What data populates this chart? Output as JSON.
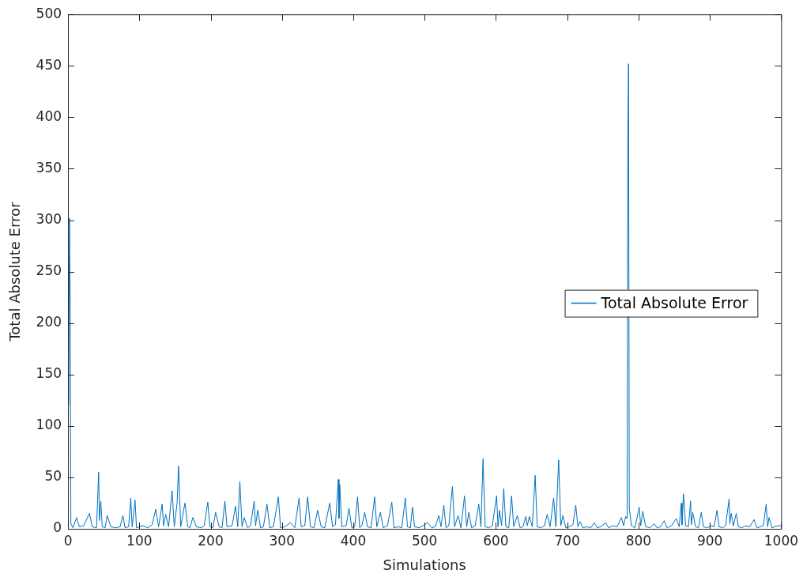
{
  "chart_data": {
    "type": "line",
    "xlabel": "Simulations",
    "ylabel": "Total Absolute Error",
    "x": [
      1,
      2,
      3,
      4,
      7,
      12,
      16,
      22,
      30,
      34,
      40,
      43,
      44,
      46,
      48,
      52,
      55,
      60,
      67,
      73,
      77,
      80,
      85,
      88,
      90,
      94,
      96,
      105,
      112,
      118,
      123,
      127,
      132,
      134,
      137,
      141,
      146,
      149,
      153,
      155,
      158,
      164,
      168,
      171,
      175,
      180,
      187,
      191,
      196,
      199,
      203,
      207,
      212,
      216,
      220,
      223,
      230,
      235,
      238,
      241,
      244,
      247,
      252,
      256,
      261,
      263,
      266,
      270,
      274,
      279,
      283,
      288,
      295,
      298,
      304,
      312,
      318,
      324,
      327,
      332,
      336,
      340,
      345,
      350,
      355,
      360,
      367,
      371,
      375,
      379,
      380,
      381,
      384,
      390,
      394,
      398,
      402,
      406,
      409,
      412,
      416,
      420,
      425,
      430,
      433,
      438,
      442,
      448,
      454,
      457,
      463,
      468,
      473,
      476,
      480,
      483,
      486,
      492,
      498,
      504,
      510,
      515,
      520,
      523,
      527,
      530,
      534,
      539,
      542,
      547,
      551,
      556,
      559,
      562,
      566,
      571,
      576,
      579,
      582,
      585,
      590,
      595,
      601,
      603,
      605,
      608,
      611,
      614,
      618,
      622,
      625,
      630,
      634,
      638,
      642,
      644,
      647,
      651,
      655,
      658,
      663,
      668,
      672,
      676,
      681,
      684,
      688,
      691,
      694,
      698,
      703,
      708,
      712,
      715,
      718,
      722,
      728,
      733,
      738,
      742,
      747,
      754,
      758,
      764,
      770,
      776,
      779,
      782,
      784,
      785,
      786,
      787,
      790,
      795,
      801,
      803,
      806,
      810,
      816,
      822,
      826,
      831,
      836,
      840,
      846,
      853,
      857,
      860,
      861,
      863,
      866,
      870,
      873,
      874,
      876,
      880,
      884,
      888,
      891,
      896,
      902,
      906,
      910,
      913,
      918,
      922,
      927,
      928,
      930,
      933,
      937,
      940,
      945,
      950,
      956,
      962,
      966,
      971,
      975,
      979,
      981,
      983,
      987,
      991,
      995,
      1000
    ],
    "series": [
      {
        "name": "Total Absolute Error",
        "color": "#0072bd",
        "values": [
          120,
          302,
          225,
          5,
          1,
          11,
          2,
          3,
          15,
          2,
          1,
          55,
          8,
          27,
          2,
          1,
          13,
          2,
          1,
          2,
          13,
          1,
          2,
          30,
          2,
          28,
          1,
          3,
          1,
          4,
          19,
          2,
          24,
          3,
          14,
          2,
          37,
          2,
          25,
          61,
          2,
          25,
          2,
          1,
          11,
          2,
          1,
          3,
          26,
          2,
          1,
          16,
          2,
          1,
          27,
          2,
          3,
          22,
          2,
          46,
          2,
          11,
          1,
          3,
          27,
          3,
          18,
          1,
          2,
          24,
          1,
          2,
          31,
          1,
          2,
          6,
          1,
          30,
          2,
          3,
          31,
          2,
          1,
          18,
          2,
          1,
          25,
          2,
          4,
          48,
          10,
          43,
          2,
          3,
          20,
          1,
          2,
          31,
          1,
          3,
          16,
          2,
          1,
          31,
          2,
          16,
          1,
          3,
          26,
          1,
          2,
          1,
          30,
          2,
          1,
          21,
          2,
          1,
          3,
          6,
          1,
          2,
          13,
          2,
          23,
          1,
          3,
          41,
          2,
          13,
          1,
          32,
          2,
          16,
          1,
          3,
          24,
          2,
          68,
          2,
          1,
          3,
          32,
          2,
          18,
          3,
          39,
          2,
          1,
          32,
          2,
          13,
          1,
          2,
          12,
          3,
          12,
          2,
          52,
          2,
          1,
          3,
          14,
          2,
          30,
          2,
          67,
          3,
          13,
          1,
          2,
          4,
          23,
          2,
          7,
          1,
          2,
          1,
          6,
          1,
          2,
          6,
          1,
          3,
          2,
          11,
          3,
          12,
          10,
          380,
          452,
          20,
          3,
          1,
          21,
          3,
          17,
          2,
          1,
          5,
          1,
          2,
          8,
          1,
          3,
          10,
          2,
          25,
          4,
          34,
          3,
          2,
          27,
          4,
          16,
          2,
          1,
          16,
          2,
          1,
          3,
          2,
          18,
          2,
          1,
          3,
          29,
          5,
          15,
          3,
          15,
          2,
          1,
          3,
          2,
          9,
          1,
          2,
          3,
          24,
          2,
          11,
          1,
          2,
          3,
          3
        ]
      }
    ],
    "xlim": [
      0,
      1000
    ],
    "xticks": [
      0,
      100,
      200,
      300,
      400,
      500,
      600,
      700,
      800,
      900,
      1000
    ],
    "ylim": [
      0,
      500
    ],
    "yticks": [
      0,
      50,
      100,
      150,
      200,
      250,
      300,
      350,
      400,
      450,
      500
    ],
    "grid": false,
    "legend": "right",
    "marker": "none",
    "line_style": "solid"
  }
}
